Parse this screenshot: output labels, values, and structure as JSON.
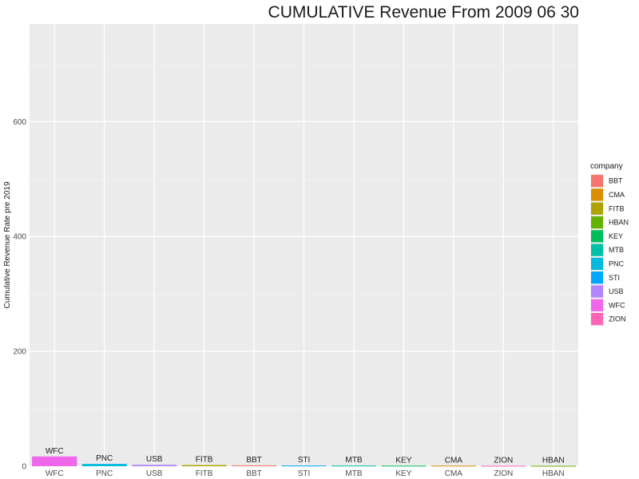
{
  "chart_data": {
    "type": "bar",
    "title": "CUMULATIVE Revenue From  2009 06 30",
    "ylabel": "Cumulative Revenue Rate pre 2019",
    "xlabel": "",
    "ylim": [
      0,
      770
    ],
    "yticks": [
      0,
      200,
      400,
      600
    ],
    "grid": true,
    "legend_position": "right",
    "legend_title": "company",
    "categories": [
      "WFC",
      "PNC",
      "USB",
      "FITB",
      "BBT",
      "STI",
      "MTB",
      "KEY",
      "CMA",
      "ZION",
      "HBAN"
    ],
    "values": [
      17,
      4,
      2.5,
      2,
      1.5,
      1.2,
      1.1,
      1,
      1,
      0.8,
      0.7
    ],
    "legend": [
      {
        "name": "BBT",
        "color": "#F8766D"
      },
      {
        "name": "CMA",
        "color": "#DB8E00"
      },
      {
        "name": "FITB",
        "color": "#AEA200"
      },
      {
        "name": "HBAN",
        "color": "#64B200"
      },
      {
        "name": "KEY",
        "color": "#00BD5C"
      },
      {
        "name": "MTB",
        "color": "#00C1A7"
      },
      {
        "name": "PNC",
        "color": "#00BADE"
      },
      {
        "name": "STI",
        "color": "#00A6FF"
      },
      {
        "name": "USB",
        "color": "#B385FF"
      },
      {
        "name": "WFC",
        "color": "#EF67EB"
      },
      {
        "name": "ZION",
        "color": "#FF63B6"
      }
    ]
  }
}
